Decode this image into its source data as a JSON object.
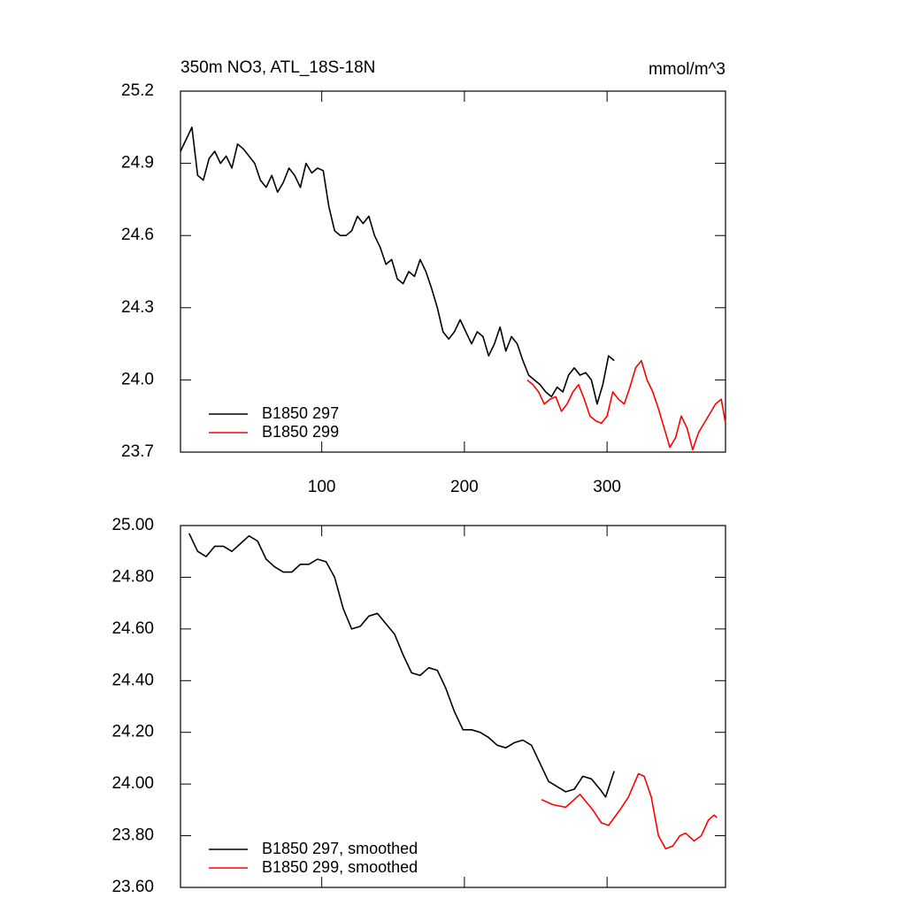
{
  "chart_data": [
    {
      "type": "line",
      "title": "350m NO3, ATL_18S-18N",
      "units_label": "mmol/m^3",
      "xlim": [
        1,
        383
      ],
      "xticks": [
        100,
        200,
        300
      ],
      "xtick_labels": true,
      "ylim": [
        23.7,
        25.2
      ],
      "yticks": [
        23.7,
        {
          "value": 24,
          "label": "24.0"
        },
        24.3,
        24.6,
        24.9,
        25.2
      ],
      "legend": "lower left",
      "series": [
        {
          "name": "B1850 297",
          "color": "#000000",
          "x": [
            1,
            5,
            9,
            13,
            17,
            21,
            25,
            29,
            33,
            37,
            41,
            45,
            49,
            53,
            57,
            61,
            65,
            69,
            73,
            77,
            81,
            85,
            89,
            93,
            97,
            101,
            105,
            109,
            113,
            117,
            121,
            125,
            129,
            133,
            137,
            141,
            145,
            149,
            153,
            157,
            161,
            165,
            169,
            173,
            177,
            181,
            185,
            189,
            193,
            197,
            201,
            205,
            209,
            213,
            217,
            221,
            225,
            229,
            233,
            237,
            241,
            245,
            249,
            253,
            257,
            261,
            265,
            269,
            273,
            277,
            281,
            285,
            289,
            293,
            297,
            301,
            305
          ],
          "values": [
            24.95,
            25.0,
            25.05,
            24.85,
            24.83,
            24.92,
            24.95,
            24.9,
            24.93,
            24.88,
            24.98,
            24.96,
            24.93,
            24.9,
            24.83,
            24.8,
            24.85,
            24.78,
            24.82,
            24.88,
            24.85,
            24.8,
            24.9,
            24.86,
            24.88,
            24.87,
            24.72,
            24.62,
            24.6,
            24.6,
            24.62,
            24.68,
            24.65,
            24.68,
            24.6,
            24.55,
            24.48,
            24.5,
            24.42,
            24.4,
            24.45,
            24.43,
            24.5,
            24.45,
            24.38,
            24.3,
            24.2,
            24.17,
            24.2,
            24.25,
            24.2,
            24.15,
            24.2,
            24.18,
            24.1,
            24.15,
            24.22,
            24.12,
            24.18,
            24.15,
            24.08,
            24.02,
            24.0,
            23.98,
            23.95,
            23.93,
            23.97,
            23.95,
            24.02,
            24.05,
            24.02,
            24.03,
            24.0,
            23.9,
            23.98,
            24.1,
            24.08
          ]
        },
        {
          "name": "B1850 299",
          "color": "#ff0000",
          "x": [
            244,
            248,
            252,
            256,
            260,
            264,
            268,
            272,
            276,
            280,
            284,
            288,
            292,
            296,
            300,
            304,
            308,
            312,
            316,
            320,
            324,
            328,
            332,
            336,
            340,
            344,
            348,
            352,
            356,
            360,
            364,
            368,
            372,
            376,
            380,
            383
          ],
          "values": [
            24.0,
            23.98,
            23.95,
            23.9,
            23.92,
            23.93,
            23.87,
            23.9,
            23.95,
            23.98,
            23.92,
            23.85,
            23.83,
            23.82,
            23.85,
            23.95,
            23.92,
            23.9,
            23.97,
            24.05,
            24.08,
            24.0,
            23.95,
            23.88,
            23.8,
            23.72,
            23.76,
            23.85,
            23.8,
            23.71,
            23.78,
            23.82,
            23.86,
            23.9,
            23.92,
            23.82
          ]
        }
      ]
    },
    {
      "type": "line",
      "xlim": [
        1,
        383
      ],
      "xticks": [
        100,
        200,
        300
      ],
      "xtick_labels": false,
      "ylim": [
        23.6,
        25.0
      ],
      "yticks": [
        {
          "value": 23.6,
          "label": "23.60"
        },
        {
          "value": 23.8,
          "label": "23.80"
        },
        {
          "value": 24,
          "label": "24.00"
        },
        {
          "value": 24.2,
          "label": "24.20"
        },
        {
          "value": 24.4,
          "label": "24.40"
        },
        {
          "value": 24.6,
          "label": "24.60"
        },
        {
          "value": 24.8,
          "label": "24.80"
        },
        {
          "value": 25,
          "label": "25.00"
        }
      ],
      "legend": "lower left",
      "series": [
        {
          "name": "B1850 297, smoothed",
          "color": "#000000",
          "x": [
            7,
            13,
            19,
            25,
            31,
            37,
            43,
            49,
            55,
            61,
            67,
            73,
            79,
            85,
            91,
            97,
            103,
            109,
            115,
            121,
            127,
            133,
            139,
            145,
            151,
            157,
            163,
            169,
            175,
            181,
            187,
            193,
            199,
            205,
            211,
            217,
            223,
            229,
            235,
            241,
            247,
            253,
            259,
            265,
            271,
            277,
            283,
            289,
            295,
            299,
            305
          ],
          "values": [
            24.97,
            24.9,
            24.88,
            24.92,
            24.92,
            24.9,
            24.93,
            24.96,
            24.94,
            24.87,
            24.84,
            24.82,
            24.82,
            24.85,
            24.85,
            24.87,
            24.86,
            24.8,
            24.68,
            24.6,
            24.61,
            24.65,
            24.66,
            24.62,
            24.58,
            24.5,
            24.43,
            24.42,
            24.45,
            24.44,
            24.37,
            24.28,
            24.21,
            24.21,
            24.2,
            24.18,
            24.15,
            24.14,
            24.16,
            24.17,
            24.15,
            24.08,
            24.01,
            23.99,
            23.97,
            23.98,
            24.03,
            24.02,
            23.98,
            23.95,
            24.05
          ]
        },
        {
          "name": "B1850 299, smoothed",
          "color": "#ff0000",
          "x": [
            254,
            262,
            271,
            281,
            290,
            296,
            301,
            309,
            315,
            322,
            326,
            331,
            336,
            341,
            346,
            351,
            355,
            361,
            366,
            371,
            375,
            377
          ],
          "values": [
            23.94,
            23.92,
            23.91,
            23.96,
            23.9,
            23.85,
            23.84,
            23.9,
            23.95,
            24.04,
            24.03,
            23.95,
            23.8,
            23.75,
            23.76,
            23.8,
            23.81,
            23.78,
            23.8,
            23.86,
            23.88,
            23.87
          ]
        }
      ]
    }
  ]
}
